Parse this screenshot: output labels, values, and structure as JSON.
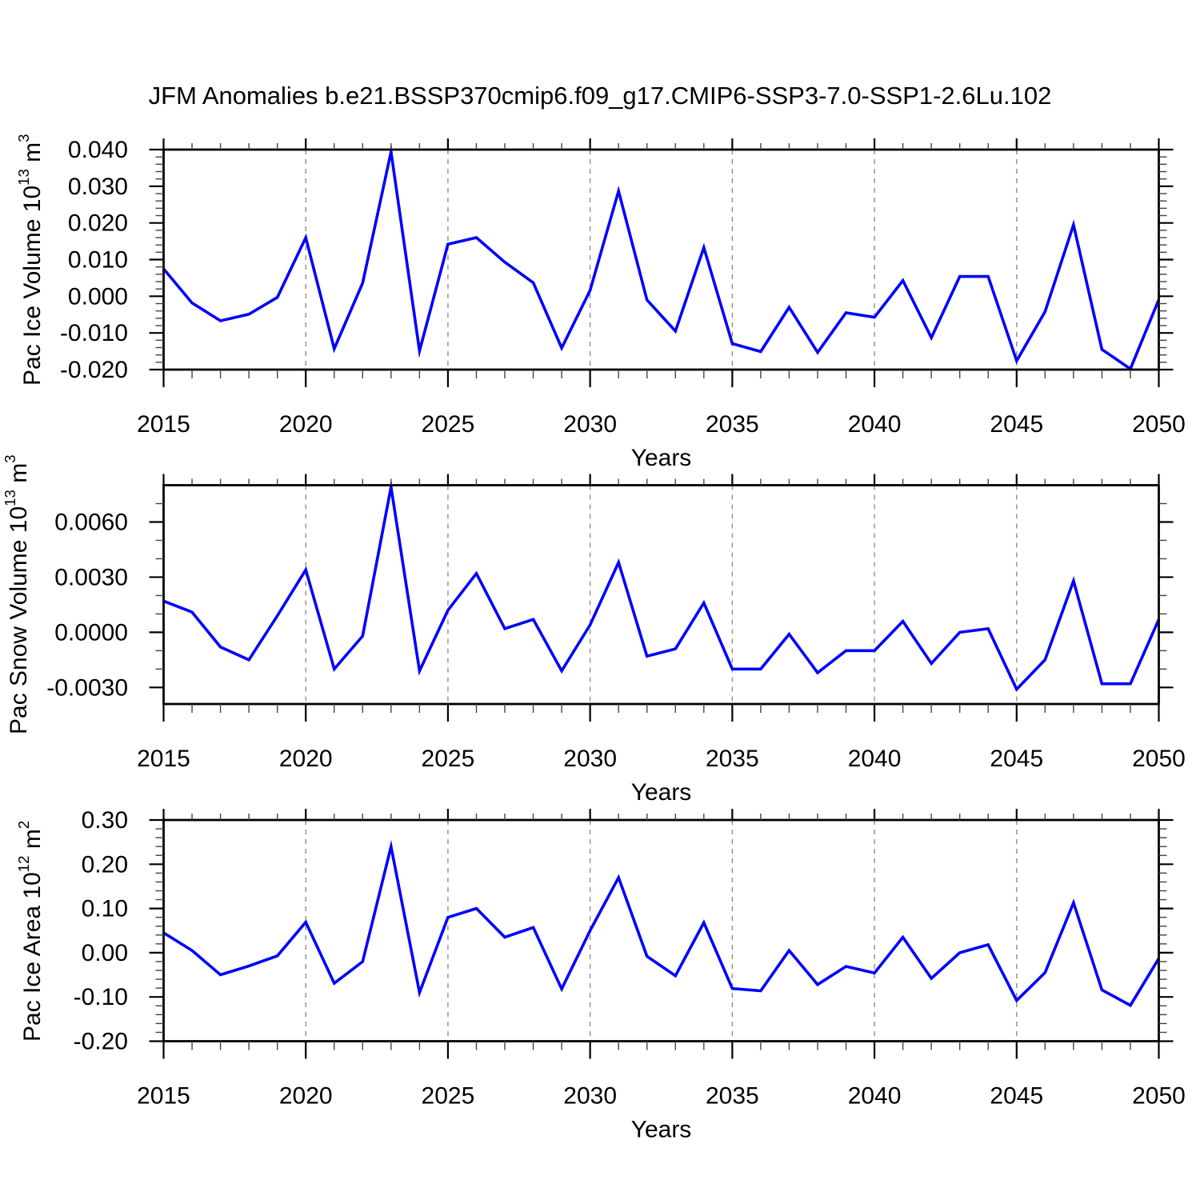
{
  "title": "JFM Anomalies b.e21.BSSP370cmip6.f09_g17.CMIP6-SSP3-7.0-SSP1-2.6Lu.102",
  "colors": {
    "line": "#0000ff",
    "grid": "#8f8f8f",
    "axis": "#000000",
    "minor_tick": "#444444",
    "text": "#000000",
    "background": "#ffffff"
  },
  "x_axis": {
    "label": "Years",
    "years": [
      2015,
      2016,
      2017,
      2018,
      2019,
      2020,
      2021,
      2022,
      2023,
      2024,
      2025,
      2026,
      2027,
      2028,
      2029,
      2030,
      2031,
      2032,
      2033,
      2034,
      2035,
      2036,
      2037,
      2038,
      2039,
      2040,
      2041,
      2042,
      2043,
      2044,
      2045,
      2046,
      2047,
      2048,
      2049,
      2050
    ],
    "major_tick_years": [
      2015,
      2020,
      2025,
      2030,
      2035,
      2040,
      2045,
      2050
    ],
    "major_tick_labels": [
      "2015",
      "2020",
      "2025",
      "2030",
      "2035",
      "2040",
      "2045",
      "2050"
    ],
    "grid_years": [
      2020,
      2025,
      2030,
      2035,
      2040,
      2045
    ]
  },
  "chart_data": [
    {
      "type": "line",
      "name": "pac-ice-volume",
      "ylabel_segments": [
        {
          "t": "Pac Ice Volume 10"
        },
        {
          "t": "13",
          "sup": true
        },
        {
          "t": " m"
        },
        {
          "t": "3",
          "sup": true
        }
      ],
      "ylim": [
        -0.02,
        0.04
      ],
      "ytick_values": [
        -0.02,
        -0.01,
        0.0,
        0.01,
        0.02,
        0.03,
        0.04
      ],
      "ytick_labels": [
        "-0.020",
        "-0.010",
        "0.000",
        "0.010",
        "0.020",
        "0.030",
        "0.040"
      ],
      "ytick_minor_step": 0.002,
      "values": [
        0.0075,
        -0.0018,
        -0.0067,
        -0.0049,
        -0.0003,
        0.016,
        -0.0143,
        0.0036,
        0.0394,
        -0.0149,
        0.0142,
        0.016,
        0.0093,
        0.0037,
        -0.0141,
        0.0016,
        0.0287,
        -0.001,
        -0.0095,
        0.0133,
        -0.0129,
        -0.0151,
        -0.003,
        -0.0153,
        -0.0045,
        -0.0057,
        0.0043,
        -0.0113,
        0.0054,
        0.0054,
        -0.0176,
        -0.0042,
        0.0195,
        -0.0145,
        -0.0198,
        -0.0009
      ]
    },
    {
      "type": "line",
      "name": "pac-snow-volume",
      "ylabel_segments": [
        {
          "t": "Pac Snow Volume 10"
        },
        {
          "t": "13",
          "sup": true
        },
        {
          "t": " m"
        },
        {
          "t": "3",
          "sup": true
        }
      ],
      "ylim": [
        -0.0039,
        0.008
      ],
      "ytick_values": [
        -0.003,
        0.0,
        0.003,
        0.006
      ],
      "ytick_labels": [
        "-0.0030",
        "0.0000",
        "0.0030",
        "0.0060"
      ],
      "ytick_minor_step": 0.001,
      "values": [
        0.0017,
        0.0011,
        -0.0008,
        -0.0015,
        0.0009,
        0.0034,
        -0.002,
        -0.0002,
        0.0079,
        -0.0021,
        0.0012,
        0.0032,
        0.0002,
        0.0007,
        -0.0021,
        0.0004,
        0.0038,
        -0.0013,
        -0.0009,
        0.0016,
        -0.002,
        -0.002,
        -0.0001,
        -0.0022,
        -0.001,
        -0.001,
        0.0006,
        -0.0017,
        0.0,
        0.0002,
        -0.0031,
        -0.0015,
        0.0028,
        -0.0028,
        -0.0028,
        0.0007
      ]
    },
    {
      "type": "line",
      "name": "pac-ice-area",
      "ylabel_segments": [
        {
          "t": "Pac Ice Area 10"
        },
        {
          "t": "12",
          "sup": true
        },
        {
          "t": " m"
        },
        {
          "t": "2",
          "sup": true
        }
      ],
      "ylim": [
        -0.2,
        0.3
      ],
      "ytick_values": [
        -0.2,
        -0.1,
        0.0,
        0.1,
        0.2,
        0.3
      ],
      "ytick_labels": [
        "-0.20",
        "-0.10",
        "0.00",
        "0.10",
        "0.20",
        "0.30"
      ],
      "ytick_minor_step": 0.02,
      "values": [
        0.045,
        0.005,
        -0.05,
        -0.03,
        -0.007,
        0.069,
        -0.069,
        -0.02,
        0.24,
        -0.09,
        0.08,
        0.1,
        0.035,
        0.057,
        -0.082,
        0.05,
        0.17,
        -0.008,
        -0.052,
        0.068,
        -0.081,
        -0.086,
        0.005,
        -0.072,
        -0.031,
        -0.046,
        0.035,
        -0.058,
        0.0,
        0.018,
        -0.108,
        -0.045,
        0.113,
        -0.084,
        -0.119,
        -0.013
      ]
    }
  ]
}
